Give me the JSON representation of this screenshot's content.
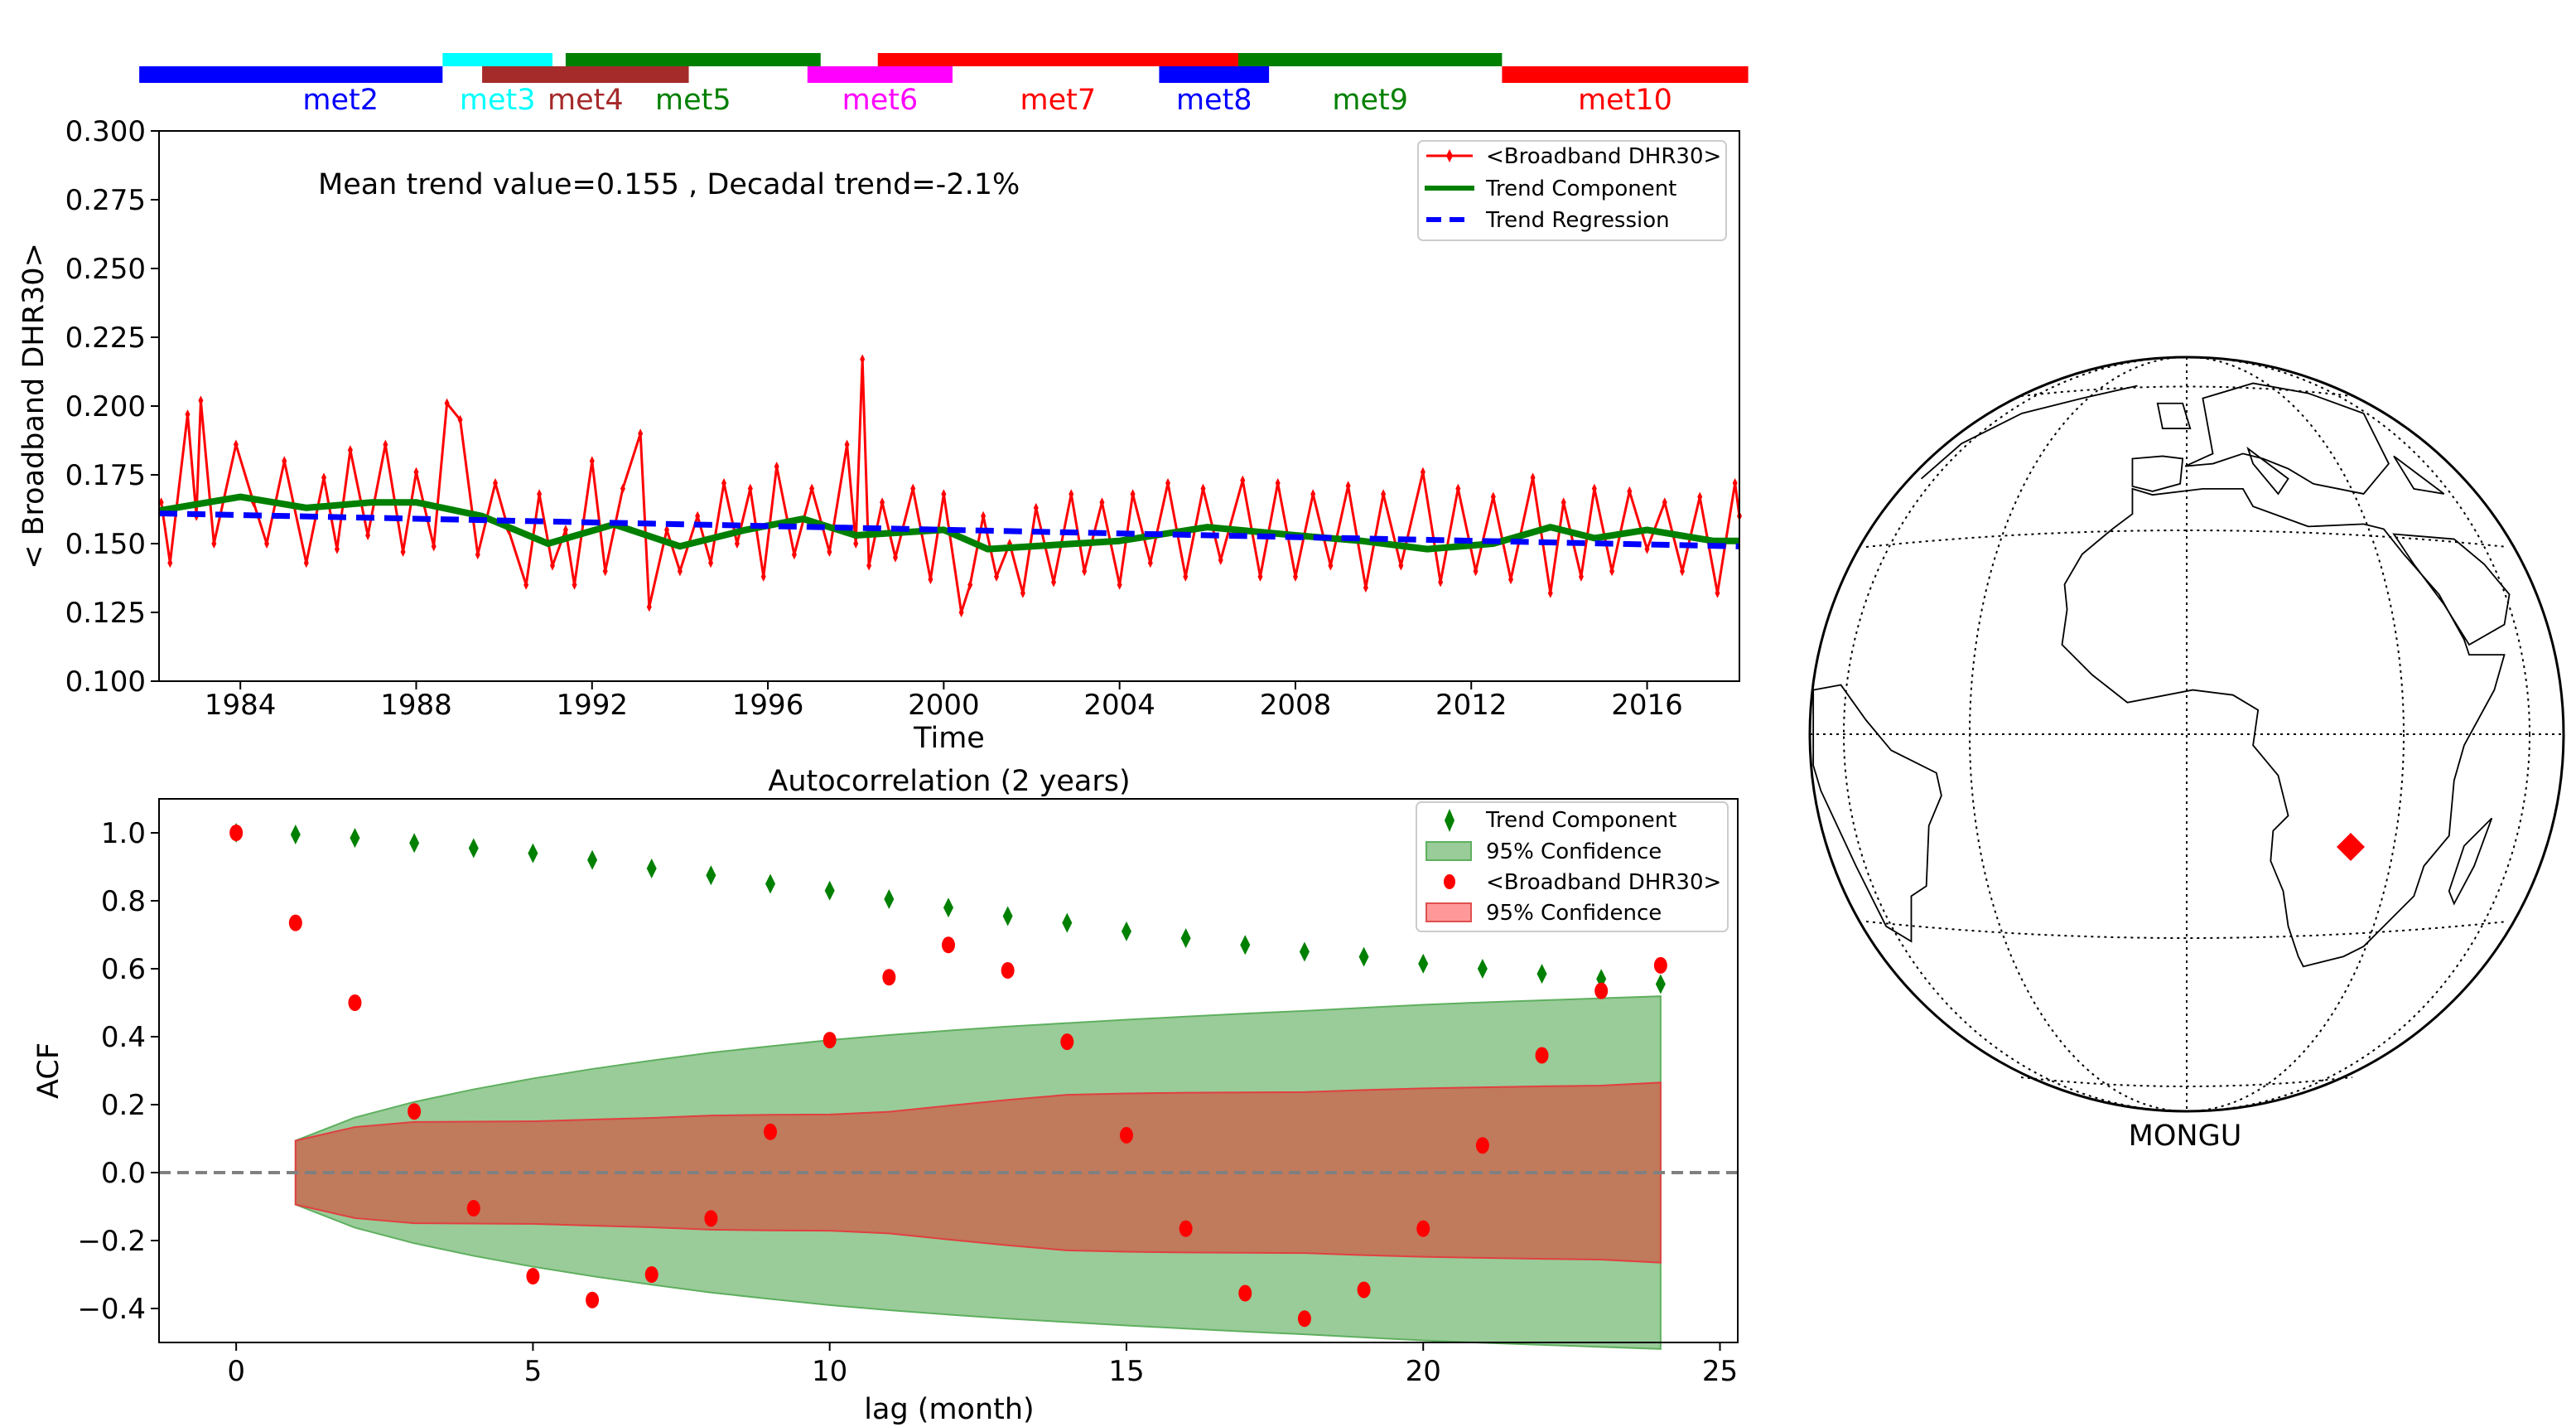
{
  "chart_data": [
    {
      "type": "line",
      "ylabel": "< Broadband DHR30>",
      "xlabel": "Time",
      "xlim": [
        1982.15,
        2018.1
      ],
      "ylim": [
        0.1,
        0.3
      ],
      "xticks": [
        "1984",
        "1988",
        "1992",
        "1996",
        "2000",
        "2004",
        "2008",
        "2012",
        "2016"
      ],
      "yticks": [
        "0.100",
        "0.125",
        "0.150",
        "0.175",
        "0.200",
        "0.225",
        "0.250",
        "0.275",
        "0.300"
      ],
      "annotation": "Mean trend value=0.155 , Decadal trend=-2.1%",
      "legend_position": "top-right",
      "legend": [
        "<Broadband DHR30>",
        "Trend Component",
        "Trend Regression"
      ],
      "colors": {
        "series": "#ff0000",
        "trend": "#008000",
        "regression": "#0000ff"
      },
      "sensors": [
        {
          "name": "met2",
          "start": 1981.7,
          "end": 1988.6,
          "row": "lower",
          "color": "#0000ff"
        },
        {
          "name": "met3",
          "start": 1988.6,
          "end": 1991.1,
          "row": "upper",
          "color": "#00ffff"
        },
        {
          "name": "met4",
          "start": 1989.5,
          "end": 1994.2,
          "row": "lower",
          "color": "#a52a2a"
        },
        {
          "name": "met5",
          "start": 1991.4,
          "end": 1997.2,
          "row": "upper",
          "color": "#008000"
        },
        {
          "name": "met6",
          "start": 1996.9,
          "end": 2000.2,
          "row": "lower",
          "color": "#ff00ff"
        },
        {
          "name": "met7",
          "start": 1998.5,
          "end": 2006.7,
          "row": "upper",
          "color": "#ff0000"
        },
        {
          "name": "met8",
          "start": 2004.9,
          "end": 2007.4,
          "row": "lower",
          "color": "#0000ff"
        },
        {
          "name": "met9",
          "start": 2006.7,
          "end": 2012.7,
          "row": "upper",
          "color": "#008000"
        },
        {
          "name": "met10",
          "start": 2012.7,
          "end": 2018.3,
          "row": "lower",
          "color": "#ff0000"
        }
      ],
      "series": [
        {
          "name": "<Broadband DHR30>",
          "points": [
            [
              1982.2,
              0.165
            ],
            [
              1982.4,
              0.143
            ],
            [
              1982.8,
              0.197
            ],
            [
              1983.0,
              0.16
            ],
            [
              1983.1,
              0.202
            ],
            [
              1983.4,
              0.15
            ],
            [
              1983.9,
              0.186
            ],
            [
              1984.3,
              0.165
            ],
            [
              1984.6,
              0.15
            ],
            [
              1985.0,
              0.18
            ],
            [
              1985.5,
              0.143
            ],
            [
              1985.9,
              0.174
            ],
            [
              1986.2,
              0.148
            ],
            [
              1986.5,
              0.184
            ],
            [
              1986.9,
              0.153
            ],
            [
              1987.3,
              0.186
            ],
            [
              1987.7,
              0.147
            ],
            [
              1988.0,
              0.176
            ],
            [
              1988.4,
              0.149
            ],
            [
              1988.7,
              0.201
            ],
            [
              1989.0,
              0.195
            ],
            [
              1989.4,
              0.146
            ],
            [
              1989.8,
              0.172
            ],
            [
              1990.1,
              0.155
            ],
            [
              1990.5,
              0.135
            ],
            [
              1990.8,
              0.168
            ],
            [
              1991.1,
              0.142
            ],
            [
              1991.4,
              0.155
            ],
            [
              1991.6,
              0.135
            ],
            [
              1992.0,
              0.18
            ],
            [
              1992.3,
              0.14
            ],
            [
              1992.7,
              0.17
            ],
            [
              1993.1,
              0.19
            ],
            [
              1993.3,
              0.127
            ],
            [
              1993.7,
              0.155
            ],
            [
              1994.0,
              0.14
            ],
            [
              1994.4,
              0.16
            ],
            [
              1994.7,
              0.143
            ],
            [
              1995.0,
              0.172
            ],
            [
              1995.3,
              0.15
            ],
            [
              1995.6,
              0.17
            ],
            [
              1995.9,
              0.138
            ],
            [
              1996.2,
              0.178
            ],
            [
              1996.6,
              0.146
            ],
            [
              1997.0,
              0.17
            ],
            [
              1997.4,
              0.147
            ],
            [
              1997.8,
              0.186
            ],
            [
              1998.0,
              0.15
            ],
            [
              1998.15,
              0.217
            ],
            [
              1998.3,
              0.142
            ],
            [
              1998.6,
              0.165
            ],
            [
              1998.9,
              0.145
            ],
            [
              1999.3,
              0.17
            ],
            [
              1999.7,
              0.137
            ],
            [
              2000.0,
              0.168
            ],
            [
              2000.4,
              0.125
            ],
            [
              2000.6,
              0.135
            ],
            [
              2000.9,
              0.16
            ],
            [
              2001.2,
              0.138
            ],
            [
              2001.5,
              0.15
            ],
            [
              2001.8,
              0.132
            ],
            [
              2002.1,
              0.163
            ],
            [
              2002.5,
              0.136
            ],
            [
              2002.9,
              0.168
            ],
            [
              2003.2,
              0.14
            ],
            [
              2003.6,
              0.165
            ],
            [
              2004.0,
              0.135
            ],
            [
              2004.3,
              0.168
            ],
            [
              2004.7,
              0.143
            ],
            [
              2005.1,
              0.172
            ],
            [
              2005.5,
              0.138
            ],
            [
              2005.9,
              0.17
            ],
            [
              2006.3,
              0.144
            ],
            [
              2006.8,
              0.173
            ],
            [
              2007.2,
              0.138
            ],
            [
              2007.6,
              0.172
            ],
            [
              2008.0,
              0.138
            ],
            [
              2008.4,
              0.168
            ],
            [
              2008.8,
              0.142
            ],
            [
              2009.2,
              0.171
            ],
            [
              2009.6,
              0.134
            ],
            [
              2010.0,
              0.168
            ],
            [
              2010.4,
              0.142
            ],
            [
              2010.9,
              0.176
            ],
            [
              2011.3,
              0.136
            ],
            [
              2011.7,
              0.17
            ],
            [
              2012.1,
              0.14
            ],
            [
              2012.5,
              0.167
            ],
            [
              2012.9,
              0.137
            ],
            [
              2013.4,
              0.174
            ],
            [
              2013.8,
              0.132
            ],
            [
              2014.1,
              0.165
            ],
            [
              2014.5,
              0.138
            ],
            [
              2014.8,
              0.17
            ],
            [
              2015.2,
              0.14
            ],
            [
              2015.6,
              0.169
            ],
            [
              2016.0,
              0.148
            ],
            [
              2016.4,
              0.165
            ],
            [
              2016.8,
              0.14
            ],
            [
              2017.2,
              0.167
            ],
            [
              2017.6,
              0.132
            ],
            [
              2018.0,
              0.172
            ],
            [
              2018.1,
              0.16
            ]
          ]
        },
        {
          "name": "Trend Component",
          "points": [
            [
              1982.15,
              0.162
            ],
            [
              1984,
              0.167
            ],
            [
              1985.5,
              0.163
            ],
            [
              1987,
              0.165
            ],
            [
              1988,
              0.165
            ],
            [
              1989.5,
              0.16
            ],
            [
              1991,
              0.15
            ],
            [
              1992.5,
              0.157
            ],
            [
              1994,
              0.149
            ],
            [
              1995.5,
              0.155
            ],
            [
              1996.8,
              0.159
            ],
            [
              1998,
              0.153
            ],
            [
              2000,
              0.155
            ],
            [
              2001,
              0.148
            ],
            [
              2003,
              0.15
            ],
            [
              2004,
              0.151
            ],
            [
              2006,
              0.156
            ],
            [
              2008,
              0.153
            ],
            [
              2009.5,
              0.151
            ],
            [
              2011,
              0.148
            ],
            [
              2012.5,
              0.15
            ],
            [
              2013.8,
              0.156
            ],
            [
              2014.8,
              0.152
            ],
            [
              2016,
              0.155
            ],
            [
              2017.5,
              0.151
            ],
            [
              2018.1,
              0.151
            ]
          ]
        },
        {
          "name": "Trend Regression",
          "points": [
            [
              1982.15,
              0.161
            ],
            [
              2018.1,
              0.149
            ]
          ]
        }
      ]
    },
    {
      "type": "scatter",
      "title": "Autocorrelation (2 years)",
      "xlabel": "lag (month)",
      "ylabel": "ACF",
      "xlim": [
        -1.3,
        25.3
      ],
      "ylim": [
        -0.5,
        1.1
      ],
      "xticks": [
        "0",
        "5",
        "10",
        "15",
        "20",
        "25"
      ],
      "yticks": [
        "−0.4",
        "−0.2",
        "0.0",
        "0.2",
        "0.4",
        "0.6",
        "0.8",
        "1.0"
      ],
      "legend_position": "top-right",
      "legend": [
        "Trend Component",
        "95% Confidence",
        "<Broadband DHR30>",
        "95% Confidence"
      ],
      "colors": {
        "trend": "#008000",
        "trend_band": "#99cc99",
        "dhr": "#ff0000",
        "dhr_band": "#ff9999",
        "overlap": "#c07a5c",
        "zero_line": "#808080"
      },
      "lags": [
        0,
        1,
        2,
        3,
        4,
        5,
        6,
        7,
        8,
        9,
        10,
        11,
        12,
        13,
        14,
        15,
        16,
        17,
        18,
        19,
        20,
        21,
        22,
        23,
        24
      ],
      "series": [
        {
          "name": "Trend Component",
          "values": [
            1.0,
            0.995,
            0.985,
            0.97,
            0.955,
            0.94,
            0.92,
            0.895,
            0.875,
            0.85,
            0.83,
            0.805,
            0.78,
            0.755,
            0.735,
            0.71,
            0.69,
            0.67,
            0.65,
            0.635,
            0.615,
            0.6,
            0.585,
            0.57,
            0.555
          ]
        },
        {
          "name": "<Broadband DHR30>",
          "values": [
            1.0,
            0.735,
            0.5,
            0.18,
            -0.105,
            -0.305,
            -0.375,
            -0.3,
            -0.135,
            0.12,
            0.39,
            0.575,
            0.67,
            0.595,
            0.385,
            0.11,
            -0.165,
            -0.355,
            -0.43,
            -0.345,
            -0.165,
            0.08,
            0.345,
            0.535,
            0.61
          ]
        }
      ],
      "confidence": {
        "lags": [
          1,
          2,
          3,
          4,
          5,
          6,
          7,
          8,
          9,
          10,
          11,
          12,
          13,
          14,
          15,
          16,
          17,
          18,
          19,
          20,
          21,
          22,
          23,
          24
        ],
        "trend_upper": [
          0.094,
          0.162,
          0.208,
          0.245,
          0.277,
          0.305,
          0.33,
          0.353,
          0.372,
          0.39,
          0.405,
          0.418,
          0.43,
          0.44,
          0.45,
          0.459,
          0.468,
          0.476,
          0.485,
          0.494,
          0.501,
          0.507,
          0.513,
          0.519
        ],
        "dhr_upper": [
          0.094,
          0.134,
          0.149,
          0.15,
          0.151,
          0.156,
          0.161,
          0.168,
          0.17,
          0.171,
          0.179,
          0.197,
          0.214,
          0.229,
          0.233,
          0.235,
          0.236,
          0.237,
          0.243,
          0.248,
          0.251,
          0.254,
          0.256,
          0.265
        ]
      }
    }
  ],
  "map": {
    "station": "MONGU",
    "marker_color": "#ff0000"
  }
}
